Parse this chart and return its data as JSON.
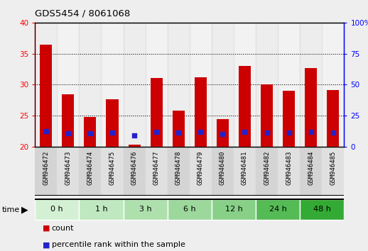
{
  "title": "GDS5454 / 8061068",
  "samples": [
    "GSM946472",
    "GSM946473",
    "GSM946474",
    "GSM946475",
    "GSM946476",
    "GSM946477",
    "GSM946478",
    "GSM946479",
    "GSM946480",
    "GSM946481",
    "GSM946482",
    "GSM946483",
    "GSM946484",
    "GSM946485"
  ],
  "counts": [
    36.5,
    28.5,
    24.8,
    27.7,
    20.3,
    31.1,
    25.8,
    31.2,
    24.5,
    33.0,
    30.1,
    29.0,
    32.7,
    29.1
  ],
  "percentile_ranks_left": [
    22.5,
    22.2,
    22.2,
    22.3,
    21.8,
    22.4,
    22.3,
    22.4,
    22.1,
    22.4,
    22.3,
    22.3,
    22.4,
    22.3
  ],
  "count_base": 20.0,
  "time_groups": [
    {
      "label": "0 h",
      "start": 0,
      "end": 1
    },
    {
      "label": "1 h",
      "start": 2,
      "end": 3
    },
    {
      "label": "3 h",
      "start": 4,
      "end": 5
    },
    {
      "label": "6 h",
      "start": 6,
      "end": 7
    },
    {
      "label": "12 h",
      "start": 8,
      "end": 9
    },
    {
      "label": "24 h",
      "start": 10,
      "end": 11
    },
    {
      "label": "48 h",
      "start": 12,
      "end": 13
    }
  ],
  "time_colors": [
    "#d4f0d4",
    "#c0e8c0",
    "#aee0ae",
    "#9cd89c",
    "#88d088",
    "#55bb55",
    "#33aa33"
  ],
  "ylim_left": [
    20,
    40
  ],
  "ylim_right": [
    0,
    100
  ],
  "yticks_left": [
    20,
    25,
    30,
    35,
    40
  ],
  "yticks_right": [
    0,
    25,
    50,
    75,
    100
  ],
  "bar_color": "#cc0000",
  "dot_color": "#2222cc",
  "bar_width": 0.55,
  "sample_col_even": "#d4d4d4",
  "sample_col_odd": "#e0e0e0",
  "bg_color": "#eeeeee",
  "plot_bg": "#ffffff",
  "grid_yticks": [
    25,
    30,
    35
  ]
}
